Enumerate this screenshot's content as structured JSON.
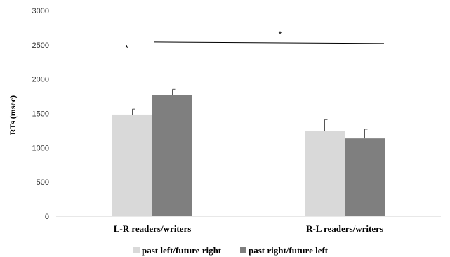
{
  "chart_data": {
    "type": "bar",
    "categories": [
      "L-R readers/writers",
      "R-L readers/writers"
    ],
    "series": [
      {
        "name": "past left/future right",
        "color": "#d9d9d9",
        "values": [
          1475,
          1240
        ],
        "error": [
          90,
          170
        ]
      },
      {
        "name": "past right/future left",
        "color": "#7f7f7f",
        "values": [
          1765,
          1135
        ],
        "error": [
          85,
          135
        ]
      }
    ],
    "ylabel": "RTs (msec)",
    "ylim": [
      0,
      3000
    ],
    "yticks": [
      0,
      500,
      1000,
      1500,
      2000,
      2500,
      3000
    ],
    "grid": false,
    "legend_position": "bottom",
    "significance": [
      {
        "label": "*",
        "between": "L-R readers/writers: past left/future right vs past right/future left",
        "level": 2350
      },
      {
        "label": "*",
        "between": "L-R readers/writers vs R-L readers/writers",
        "level": 2530
      }
    ]
  }
}
